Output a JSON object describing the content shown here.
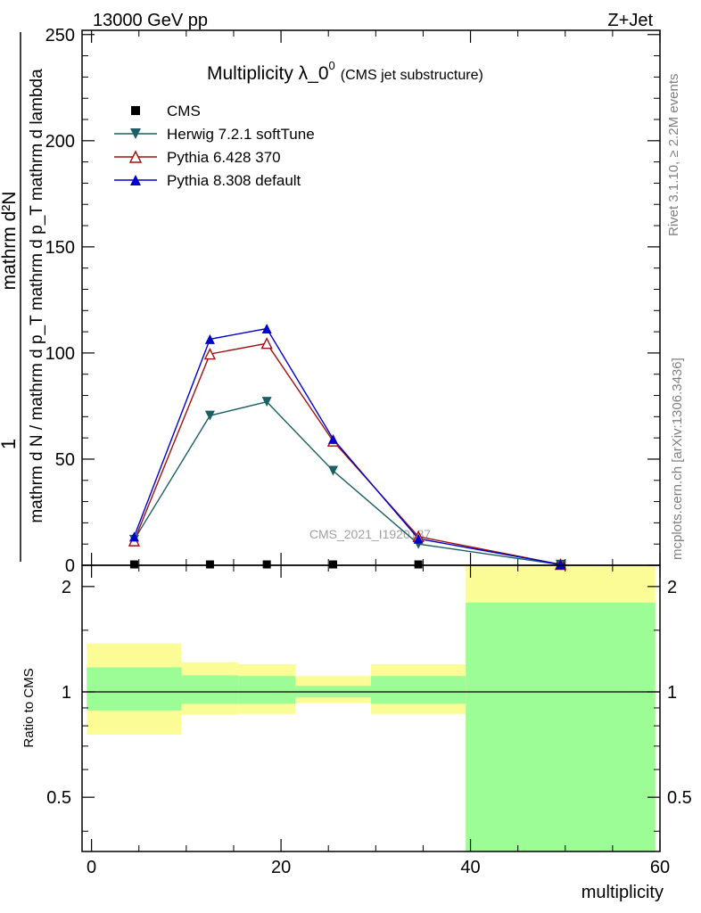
{
  "header": {
    "energy_label": "13000 GeV pp",
    "process_label": "Z+Jet",
    "title_main": "Multiplicity λ_0",
    "title_sup": "0",
    "title_sub": "(CMS jet substructure)"
  },
  "side_text": {
    "rivet": "Rivet 3.1.10, ≥ 2.2M events",
    "mcplots": "mcplots.cern.ch [arXiv:1306.3436]"
  },
  "watermark": "CMS_2021_I1920187",
  "axes": {
    "ylabel_numerator": "1",
    "ylabel_denominator": "mathrm d N / mathrm d p_T mathrm d p_T mathrm d lambda",
    "ylabel_top": "mathrm d²N",
    "ratio_ylabel": "Ratio to CMS",
    "xlabel": "multiplicity"
  },
  "chart_data": {
    "type": "line",
    "x_label": "multiplicity",
    "xlim": [
      -1,
      60
    ],
    "main_ylim": [
      0,
      252
    ],
    "main_yticks": [
      0,
      50,
      100,
      150,
      200,
      250
    ],
    "ratio_ylim": [
      0.35,
      2.3
    ],
    "ratio_yticks": [
      0.5,
      1,
      2
    ],
    "xticks": [
      0,
      20,
      40,
      60
    ],
    "series": [
      {
        "name": "CMS",
        "color": "#000000",
        "marker": "square",
        "x": [
          4.5,
          12.5,
          18.5,
          25.5,
          34.5,
          49.5
        ],
        "y": [
          0.4,
          0.4,
          0.4,
          0.4,
          0.4,
          0.05
        ]
      },
      {
        "name": "Herwig 7.2.1 softTune",
        "color": "#1b5e63",
        "marker": "triangle-down",
        "x": [
          4.5,
          12.5,
          18.5,
          25.5,
          34.5,
          49.5
        ],
        "y": [
          12.0,
          70.5,
          77.0,
          44.5,
          10.0,
          0.3
        ]
      },
      {
        "name": "Pythia 6.428 370",
        "color": "#a01010",
        "marker": "triangle-up-open",
        "x": [
          4.5,
          12.5,
          18.5,
          25.5,
          34.5,
          49.5
        ],
        "y": [
          11.5,
          99.5,
          104.5,
          58.5,
          13.5,
          0.4
        ]
      },
      {
        "name": "Pythia 8.308 default",
        "color": "#0000cc",
        "marker": "triangle-up",
        "x": [
          4.5,
          12.5,
          18.5,
          25.5,
          34.5,
          49.5
        ],
        "y": [
          13.5,
          106.5,
          111.5,
          59.5,
          12.5,
          0.4
        ]
      }
    ],
    "ratio_bands": [
      {
        "x0": -0.5,
        "x1": 9.5,
        "inner": [
          0.885,
          1.175
        ],
        "outer": [
          0.755,
          1.375
        ]
      },
      {
        "x0": 9.5,
        "x1": 15.5,
        "inner": [
          0.925,
          1.115
        ],
        "outer": [
          0.86,
          1.215
        ]
      },
      {
        "x0": 15.5,
        "x1": 21.5,
        "inner": [
          0.925,
          1.11
        ],
        "outer": [
          0.865,
          1.2
        ]
      },
      {
        "x0": 21.5,
        "x1": 29.5,
        "inner": [
          0.965,
          1.04
        ],
        "outer": [
          0.93,
          1.11
        ]
      },
      {
        "x0": 29.5,
        "x1": 39.5,
        "inner": [
          0.925,
          1.11
        ],
        "outer": [
          0.865,
          1.2
        ]
      },
      {
        "x0": 39.5,
        "x1": 59.5,
        "inner": [
          0.35,
          1.8
        ],
        "outer": [
          0.35,
          2.3
        ]
      }
    ],
    "ratio_band_colors": {
      "inner": "#9cfc96",
      "outer": "#fcfc96"
    }
  }
}
